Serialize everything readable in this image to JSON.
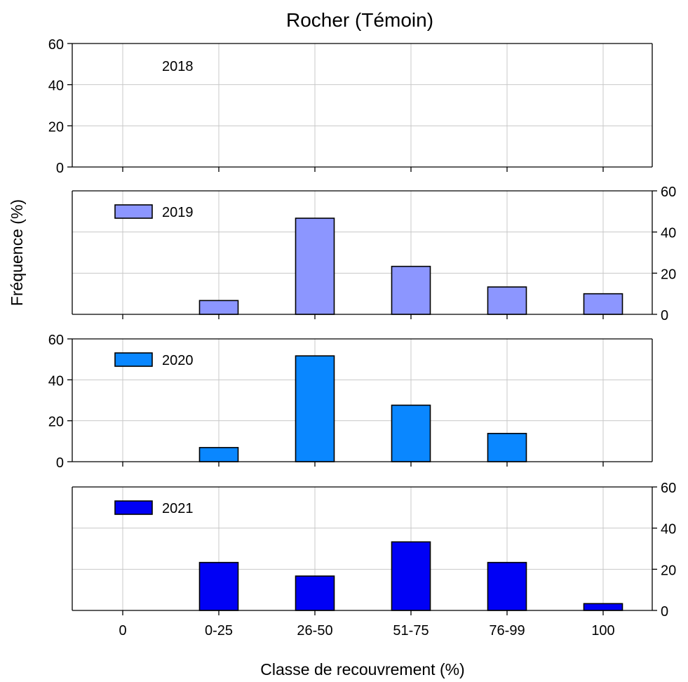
{
  "title": "Rocher (Témoin)",
  "ylabel": "Fréquence (%)",
  "xlabel": "Classe de recouvrement (%)",
  "chart_data": [
    {
      "type": "bar",
      "title": "Rocher (Témoin)",
      "legend": "2018",
      "color": "",
      "categories": [
        "0",
        "0-25",
        "26-50",
        "51-75",
        "76-99",
        "100"
      ],
      "values": [
        0,
        0,
        0,
        0,
        0,
        0
      ],
      "ylim": [
        0,
        60
      ],
      "yticks": [
        "0",
        "20",
        "40",
        "60"
      ],
      "yaxis_side": "left",
      "grid": true,
      "xlabel": "Classe de recouvrement (%)",
      "ylabel": "Fréquence (%)"
    },
    {
      "type": "bar",
      "legend": "2019",
      "color": "#8C96FF",
      "categories": [
        "0",
        "0-25",
        "26-50",
        "51-75",
        "76-99",
        "100"
      ],
      "values": [
        0,
        6.7,
        46.7,
        23.3,
        13.3,
        10
      ],
      "ylim": [
        0,
        60
      ],
      "yticks": [
        "0",
        "20",
        "40",
        "60"
      ],
      "yaxis_side": "right",
      "grid": true
    },
    {
      "type": "bar",
      "legend": "2020",
      "color": "#0A87FF",
      "categories": [
        "0",
        "0-25",
        "26-50",
        "51-75",
        "76-99",
        "100"
      ],
      "values": [
        0,
        6.9,
        51.7,
        27.6,
        13.8,
        0
      ],
      "ylim": [
        0,
        60
      ],
      "yticks": [
        "0",
        "20",
        "40",
        "60"
      ],
      "yaxis_side": "left",
      "grid": true
    },
    {
      "type": "bar",
      "legend": "2021",
      "color": "#0000F5",
      "categories": [
        "0",
        "0-25",
        "26-50",
        "51-75",
        "76-99",
        "100"
      ],
      "values": [
        0,
        23.3,
        16.7,
        33.3,
        23.3,
        3.3
      ],
      "ylim": [
        0,
        60
      ],
      "yticks": [
        "0",
        "20",
        "40",
        "60"
      ],
      "yaxis_side": "right",
      "grid": true
    }
  ]
}
